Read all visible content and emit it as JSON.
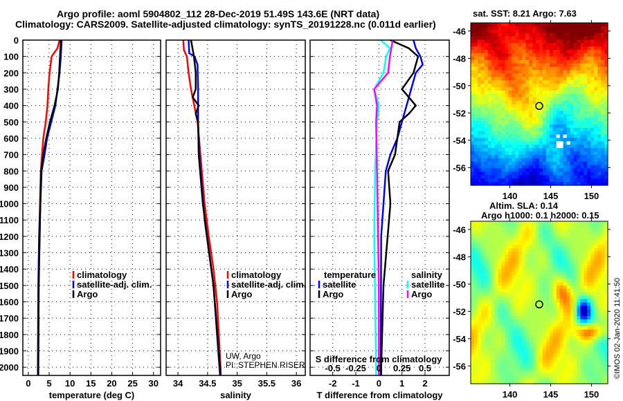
{
  "title_line1": "Argo profile: aoml 5904802_112 28-Dec-2019 51.49S 143.6E (NRT data)",
  "title_line2": "Climatology: CARS2009. Satellite-adjusted climatology: synTS_20191228.nc (0.011d earlier)",
  "credit": "UW, Argo",
  "pi": "PI: STEPHEN RISER",
  "copyright": "©IMOS 02-Jan-2020 11:41:50",
  "colors": {
    "climatology": "#ff0000",
    "satellite": "#0000ff",
    "argo": "#000000",
    "sal_sat": "#00ffff",
    "sal_argo": "#ff00ff"
  },
  "chart_data": [
    {
      "type": "line",
      "name": "temperature",
      "xlabel": "temperature (deg C)",
      "ylabel": "",
      "xlim": [
        -1.3,
        31.7
      ],
      "ylim": [
        0,
        2050
      ],
      "xticks": [
        0,
        5,
        10,
        15,
        20,
        25,
        30
      ],
      "yticks": [
        0,
        100,
        200,
        300,
        400,
        500,
        600,
        700,
        800,
        900,
        1000,
        1100,
        1200,
        1300,
        1400,
        1500,
        1600,
        1700,
        1800,
        1900,
        2000
      ],
      "legend": [
        "climatology",
        "satellite-adj. clim.",
        "Argo"
      ],
      "series": [
        {
          "name": "climatology",
          "color": "#ff0000",
          "depth": [
            0,
            50,
            100,
            200,
            300,
            400,
            500,
            600,
            700,
            800,
            1000,
            1200,
            1500,
            2000,
            2050
          ],
          "values": [
            7.5,
            7.0,
            5.6,
            5.1,
            4.8,
            4.6,
            4.2,
            3.6,
            3.3,
            3.0,
            2.8,
            2.6,
            2.5,
            2.4,
            2.4
          ]
        },
        {
          "name": "satellite-adj. clim.",
          "color": "#0000ff",
          "depth": [
            0,
            100,
            200,
            300,
            400,
            500,
            600,
            700,
            800,
            1000,
            1200,
            1500,
            2000,
            2050
          ],
          "values": [
            8.0,
            7.8,
            7.5,
            7.0,
            6.5,
            5.5,
            4.5,
            3.9,
            3.2,
            2.9,
            2.6,
            2.4,
            2.3,
            2.3
          ]
        },
        {
          "name": "Argo",
          "color": "#000000",
          "depth": [
            0,
            100,
            200,
            300,
            400,
            500,
            600,
            700,
            800,
            1000,
            1500,
            2000,
            2050
          ],
          "values": [
            7.8,
            7.6,
            7.4,
            7.1,
            6.3,
            5.2,
            4.3,
            3.6,
            3.1,
            2.9,
            2.5,
            2.4,
            2.4
          ]
        }
      ]
    },
    {
      "type": "line",
      "name": "salinity",
      "xlabel": "salinity",
      "xlim": [
        33.8,
        36.15
      ],
      "ylim": [
        0,
        2050
      ],
      "xticks": [
        34,
        34.5,
        35,
        35.5,
        36
      ],
      "legend": [
        "climatology",
        "satellite-adj. clim.",
        "Argo"
      ],
      "series": [
        {
          "name": "climatology",
          "color": "#ff0000",
          "depth": [
            0,
            60,
            100,
            200,
            300,
            500,
            700,
            1000,
            1200,
            1400,
            1600,
            2000,
            2050
          ],
          "values": [
            34.09,
            34.1,
            34.15,
            34.18,
            34.22,
            34.33,
            34.38,
            34.45,
            34.52,
            34.6,
            34.66,
            34.72,
            34.72
          ]
        },
        {
          "name": "satellite-adj. clim.",
          "color": "#0000ff",
          "depth": [
            0,
            80,
            100,
            150,
            300,
            500,
            700,
            1100,
            1500,
            2000,
            2050
          ],
          "values": [
            34.18,
            34.19,
            34.28,
            34.33,
            34.34,
            34.34,
            34.36,
            34.45,
            34.6,
            34.7,
            34.71
          ]
        },
        {
          "name": "Argo",
          "color": "#000000",
          "depth": [
            0,
            100,
            200,
            300,
            350,
            400,
            450,
            500,
            700,
            1000,
            1500,
            2000,
            2050
          ],
          "values": [
            34.22,
            34.27,
            34.3,
            34.3,
            34.25,
            34.35,
            34.3,
            34.34,
            34.35,
            34.42,
            34.6,
            34.71,
            34.72
          ]
        }
      ]
    },
    {
      "type": "line",
      "name": "difference",
      "xlabel": "T difference from climatology",
      "s_label": "S difference from climatology",
      "xlim": [
        -2.98,
        3.05
      ],
      "ylim": [
        0,
        2050
      ],
      "xticks": [
        -2,
        -1,
        0,
        1,
        2
      ],
      "s_ticks": [
        -0.5,
        -0.25,
        0,
        0.25,
        0.5
      ],
      "legend_temperature": {
        "title": "temperature",
        "items": [
          "satellite",
          "Argo"
        ]
      },
      "legend_salinity": {
        "title": "salinity",
        "items": [
          "satellite",
          "Argo"
        ]
      },
      "series": [
        {
          "name": "T satellite",
          "color": "#0000ff",
          "var": "T",
          "depth": [
            0,
            50,
            100,
            150,
            200,
            300,
            500,
            600,
            700,
            800,
            1200,
            2000,
            2050
          ],
          "values": [
            1.5,
            1.6,
            1.8,
            1.9,
            1.6,
            1.4,
            1.0,
            0.8,
            0.5,
            0.3,
            0.1,
            0.08,
            0.08
          ]
        },
        {
          "name": "T Argo",
          "color": "#000000",
          "var": "T",
          "depth": [
            0,
            50,
            100,
            150,
            200,
            300,
            400,
            450,
            500,
            700,
            800,
            1000,
            1500,
            2000,
            2050
          ],
          "values": [
            0.5,
            1.3,
            1.7,
            1.6,
            1.5,
            1.0,
            1.6,
            1.3,
            0.9,
            0.7,
            0.4,
            0.5,
            0.2,
            0.1,
            0.1
          ]
        },
        {
          "name": "S satellite",
          "color": "#00ffff",
          "var": "S",
          "depth": [
            0,
            50,
            100,
            200,
            300,
            400,
            500,
            800,
            1200,
            2000,
            2050
          ],
          "values": [
            0.02,
            0.12,
            0.08,
            0.05,
            -0.05,
            0.0,
            -0.02,
            -0.04,
            -0.05,
            -0.03,
            -0.03
          ]
        },
        {
          "name": "S Argo",
          "color": "#ff00ff",
          "var": "S",
          "depth": [
            0,
            100,
            200,
            300,
            400,
            500,
            800,
            1500,
            2000,
            2050
          ],
          "values": [
            0.15,
            0.12,
            0.1,
            -0.05,
            -0.02,
            -0.03,
            -0.02,
            0.0,
            0.0,
            0.0
          ]
        }
      ]
    },
    {
      "type": "heatmap",
      "name": "sst-map",
      "title": "sat. SST: 8.21 Argo: 7.63",
      "xticks": [
        140,
        145,
        150
      ],
      "yticks": [
        -46,
        -48,
        -50,
        -52,
        -54,
        -56
      ],
      "xlim": [
        135.2,
        152
      ],
      "ylim": [
        -57.3,
        -45.4
      ],
      "marker": [
        143.6,
        -51.49
      ]
    },
    {
      "type": "heatmap",
      "name": "sla-map",
      "title": "Altim. SLA: 0.14",
      "subtitle": "Argo h1000: 0.1 h2000: 0.15",
      "xticks": [
        140,
        145,
        150
      ],
      "yticks": [
        -46,
        -48,
        -50,
        -52,
        -54,
        -56
      ],
      "xlim": [
        135.2,
        152
      ],
      "ylim": [
        -57.3,
        -45.4
      ],
      "marker": [
        143.6,
        -51.49
      ]
    }
  ]
}
